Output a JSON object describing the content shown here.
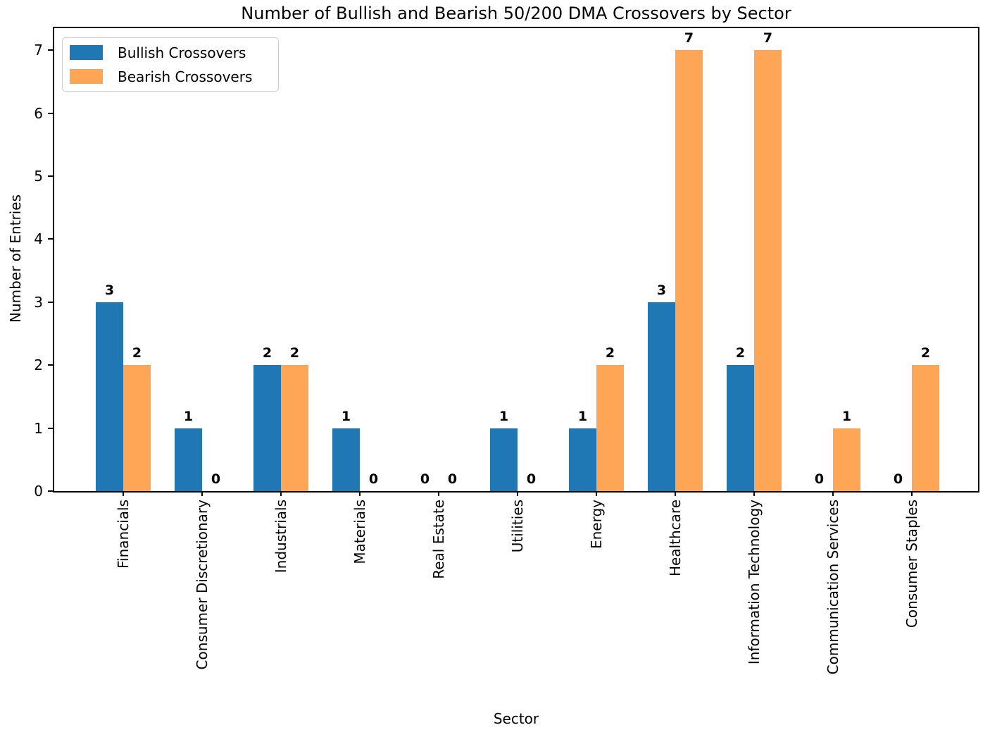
{
  "chart_data": {
    "type": "bar",
    "title": "Number of Bullish and Bearish 50/200 DMA Crossovers by Sector",
    "xlabel": "Sector",
    "ylabel": "Number of Entries",
    "categories": [
      "Financials",
      "Consumer Discretionary",
      "Industrials",
      "Materials",
      "Real Estate",
      "Utilities",
      "Energy",
      "Healthcare",
      "Information Technology",
      "Communication Services",
      "Consumer Staples"
    ],
    "series": [
      {
        "name": "Bullish Crossovers",
        "color": "#1f77b4",
        "values": [
          3,
          1,
          2,
          1,
          0,
          1,
          1,
          3,
          2,
          0,
          0
        ]
      },
      {
        "name": "Bearish Crossovers",
        "color": "#ffa556",
        "values": [
          2,
          0,
          2,
          0,
          0,
          0,
          2,
          7,
          7,
          1,
          2
        ]
      }
    ],
    "yticks": [
      0,
      1,
      2,
      3,
      4,
      5,
      6,
      7
    ],
    "ylim": [
      0,
      7.37
    ],
    "bar_value_labels": true,
    "legend_position": "upper left",
    "grid": false,
    "background_color": "#ffffff",
    "text_color": "#000000"
  }
}
